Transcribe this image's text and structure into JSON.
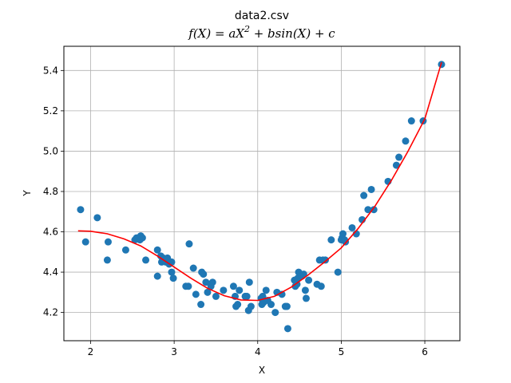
{
  "chart_data": {
    "type": "scatter",
    "title": "data2.csv",
    "subtitle_parts": [
      "f(X) = aX",
      "2",
      " + bsin(X) + c"
    ],
    "xlabel": "X",
    "ylabel": "Y",
    "xlim": [
      1.68,
      6.42
    ],
    "ylim": [
      4.06,
      5.52
    ],
    "xticks": [
      2,
      3,
      4,
      5,
      6
    ],
    "yticks": [
      4.2,
      4.4,
      4.6,
      4.8,
      5.0,
      5.2,
      5.4
    ],
    "xtick_labels": [
      "2",
      "3",
      "4",
      "5",
      "6"
    ],
    "ytick_labels": [
      "4.2",
      "4.4",
      "4.6",
      "4.8",
      "5.0",
      "5.2",
      "5.4"
    ],
    "grid": true,
    "colors": {
      "points": "#1f77b4",
      "fit": "#ff0000",
      "grid": "#b0b0b0"
    },
    "series": [
      {
        "kind": "scatter",
        "x": [
          1.88,
          1.94,
          2.08,
          2.2,
          2.21,
          2.42,
          2.53,
          2.55,
          2.59,
          2.6,
          2.62,
          2.66,
          2.8,
          2.8,
          2.84,
          2.85,
          2.87,
          2.9,
          2.92,
          2.94,
          2.97,
          2.97,
          2.99,
          3.14,
          3.17,
          3.18,
          3.23,
          3.26,
          3.32,
          3.33,
          3.35,
          3.38,
          3.4,
          3.44,
          3.46,
          3.5,
          3.59,
          3.71,
          3.73,
          3.74,
          3.76,
          3.78,
          3.85,
          3.87,
          3.89,
          3.9,
          3.92,
          4.04,
          4.05,
          4.06,
          4.07,
          4.1,
          4.12,
          4.16,
          4.21,
          4.23,
          4.29,
          4.33,
          4.35,
          4.36,
          4.44,
          4.45,
          4.47,
          4.48,
          4.49,
          4.53,
          4.55,
          4.57,
          4.58,
          4.61,
          4.71,
          4.74,
          4.76,
          4.78,
          4.81,
          4.88,
          4.96,
          5.0,
          5.01,
          5.02,
          5.04,
          5.05,
          5.13,
          5.18,
          5.25,
          5.27,
          5.32,
          5.36,
          5.39,
          5.56,
          5.66,
          5.69,
          5.77,
          5.84,
          5.98,
          6.2
        ],
        "y": [
          4.71,
          4.55,
          4.67,
          4.46,
          4.55,
          4.51,
          4.56,
          4.57,
          4.56,
          4.58,
          4.57,
          4.46,
          4.51,
          4.38,
          4.48,
          4.45,
          4.47,
          4.45,
          4.47,
          4.44,
          4.45,
          4.4,
          4.37,
          4.33,
          4.33,
          4.54,
          4.42,
          4.29,
          4.24,
          4.4,
          4.39,
          4.35,
          4.3,
          4.33,
          4.35,
          4.28,
          4.31,
          4.33,
          4.28,
          4.23,
          4.24,
          4.31,
          4.28,
          4.28,
          4.21,
          4.35,
          4.23,
          4.27,
          4.24,
          4.28,
          4.25,
          4.31,
          4.26,
          4.24,
          4.2,
          4.3,
          4.29,
          4.23,
          4.23,
          4.12,
          4.36,
          4.33,
          4.34,
          4.37,
          4.4,
          4.38,
          4.39,
          4.31,
          4.27,
          4.36,
          4.34,
          4.46,
          4.33,
          4.46,
          4.46,
          4.56,
          4.4,
          4.56,
          4.57,
          4.59,
          4.56,
          4.55,
          4.62,
          4.59,
          4.66,
          4.78,
          4.71,
          4.81,
          4.71,
          4.85,
          4.93,
          4.97,
          5.05,
          5.15,
          5.15,
          5.43
        ]
      },
      {
        "kind": "line",
        "x": [
          1.85,
          2.0,
          2.2,
          2.4,
          2.6,
          2.8,
          3.0,
          3.2,
          3.4,
          3.6,
          3.8,
          4.0,
          4.2,
          4.4,
          4.6,
          4.8,
          5.0,
          5.2,
          5.4,
          5.6,
          5.8,
          6.0,
          6.2
        ],
        "y": [
          4.605,
          4.603,
          4.59,
          4.565,
          4.53,
          4.48,
          4.425,
          4.37,
          4.32,
          4.283,
          4.262,
          4.26,
          4.28,
          4.325,
          4.385,
          4.45,
          4.52,
          4.615,
          4.725,
          4.855,
          5.0,
          5.16,
          5.44
        ]
      }
    ]
  }
}
